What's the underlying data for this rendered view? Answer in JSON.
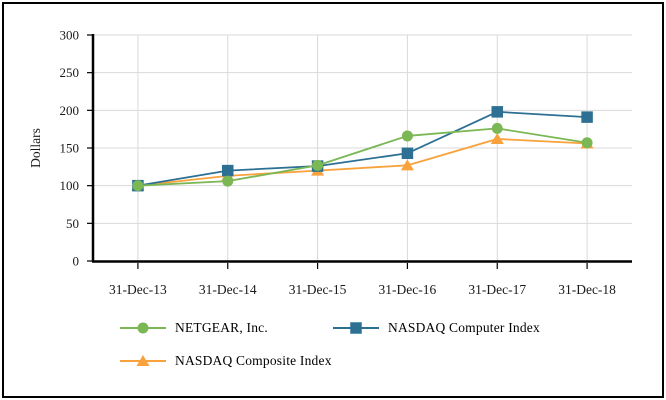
{
  "chart_data": {
    "type": "line",
    "title": "",
    "xlabel": "",
    "ylabel": "Dollars",
    "categories": [
      "31-Dec-13",
      "31-Dec-14",
      "31-Dec-15",
      "31-Dec-16",
      "31-Dec-17",
      "31-Dec-18"
    ],
    "series": [
      {
        "name": "NETGEAR, Inc.",
        "marker": "circle",
        "color": "#7BB754",
        "values": [
          100,
          106,
          127,
          166,
          176,
          157
        ]
      },
      {
        "name": "NASDAQ Computer Index",
        "marker": "square",
        "color": "#2D7093",
        "values": [
          100,
          120,
          126,
          143,
          198,
          191
        ]
      },
      {
        "name": "NASDAQ Composite Index",
        "marker": "triangle",
        "color": "#F9A23C",
        "values": [
          100,
          113,
          120,
          127,
          162,
          156
        ]
      }
    ],
    "ylim": [
      0,
      300
    ],
    "yticks": [
      0,
      50,
      100,
      150,
      200,
      250,
      300
    ],
    "grid": true,
    "gridline_color": "#D9D9D9",
    "axis_color": "#000000",
    "text_color": "#1a1a1a",
    "legend_position": "bottom"
  }
}
